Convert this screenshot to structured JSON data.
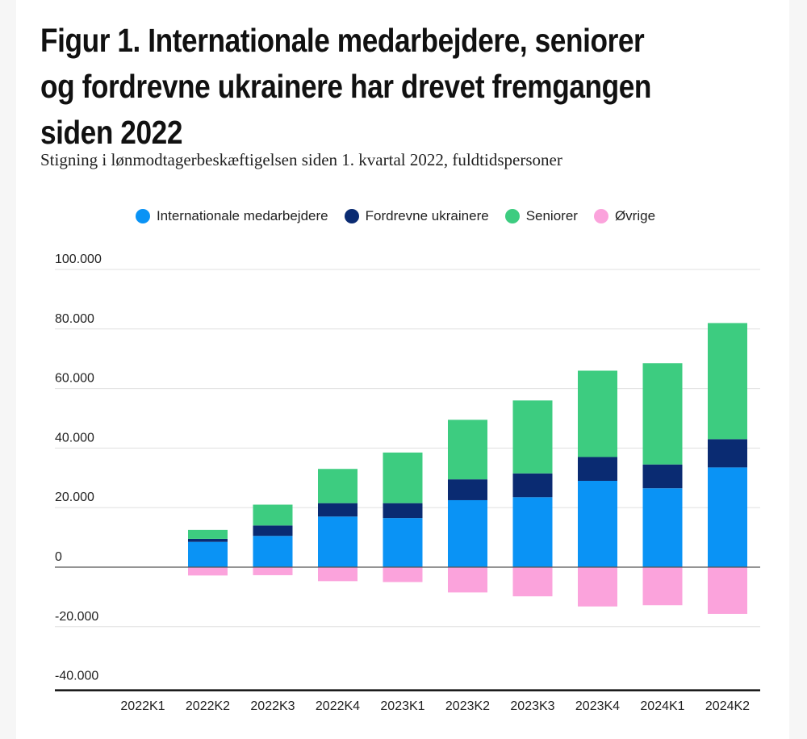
{
  "chart_data": {
    "type": "bar",
    "stacked": true,
    "title": "Figur 1. Internationale medarbejdere, seniorer og fordrevne ukrainere har drevet fremgangen siden 2022",
    "subtitle": "Stigning i lønmodtagerbeskæftigelsen siden 1. kvartal 2022, fuldtidspersoner",
    "xlabel": "",
    "ylabel": "",
    "ylim": [
      -40000,
      100000
    ],
    "yticks": [
      100000,
      80000,
      60000,
      40000,
      20000,
      0,
      -20000,
      -40000
    ],
    "ytick_labels": [
      "100.000",
      "80.000",
      "60.000",
      "40.000",
      "20.000",
      "0",
      "-20.000",
      "-40.000"
    ],
    "categories": [
      "2022K1",
      "2022K2",
      "2022K3",
      "2022K4",
      "2023K1",
      "2023K2",
      "2023K3",
      "2023K4",
      "2024K1",
      "2024K2"
    ],
    "legend_position": "top-center",
    "series": [
      {
        "name": "Internationale medarbejdere",
        "color": "#0a93f5",
        "values": [
          0,
          8500,
          10500,
          17000,
          16500,
          22500,
          23500,
          29000,
          26500,
          33500
        ]
      },
      {
        "name": "Fordrevne ukrainere",
        "color": "#0a2b72",
        "values": [
          0,
          1000,
          3500,
          4500,
          5000,
          7000,
          8000,
          8000,
          8000,
          9500
        ]
      },
      {
        "name": "Seniorer",
        "color": "#3dcc80",
        "values": [
          0,
          3000,
          7000,
          11500,
          17000,
          20000,
          24500,
          29000,
          34000,
          39000
        ]
      },
      {
        "name": "Øvrige",
        "color": "#fba3dc",
        "values": [
          0,
          -2800,
          -2700,
          -4700,
          -5000,
          -8500,
          -9800,
          -13200,
          -12800,
          -15700
        ]
      }
    ]
  }
}
